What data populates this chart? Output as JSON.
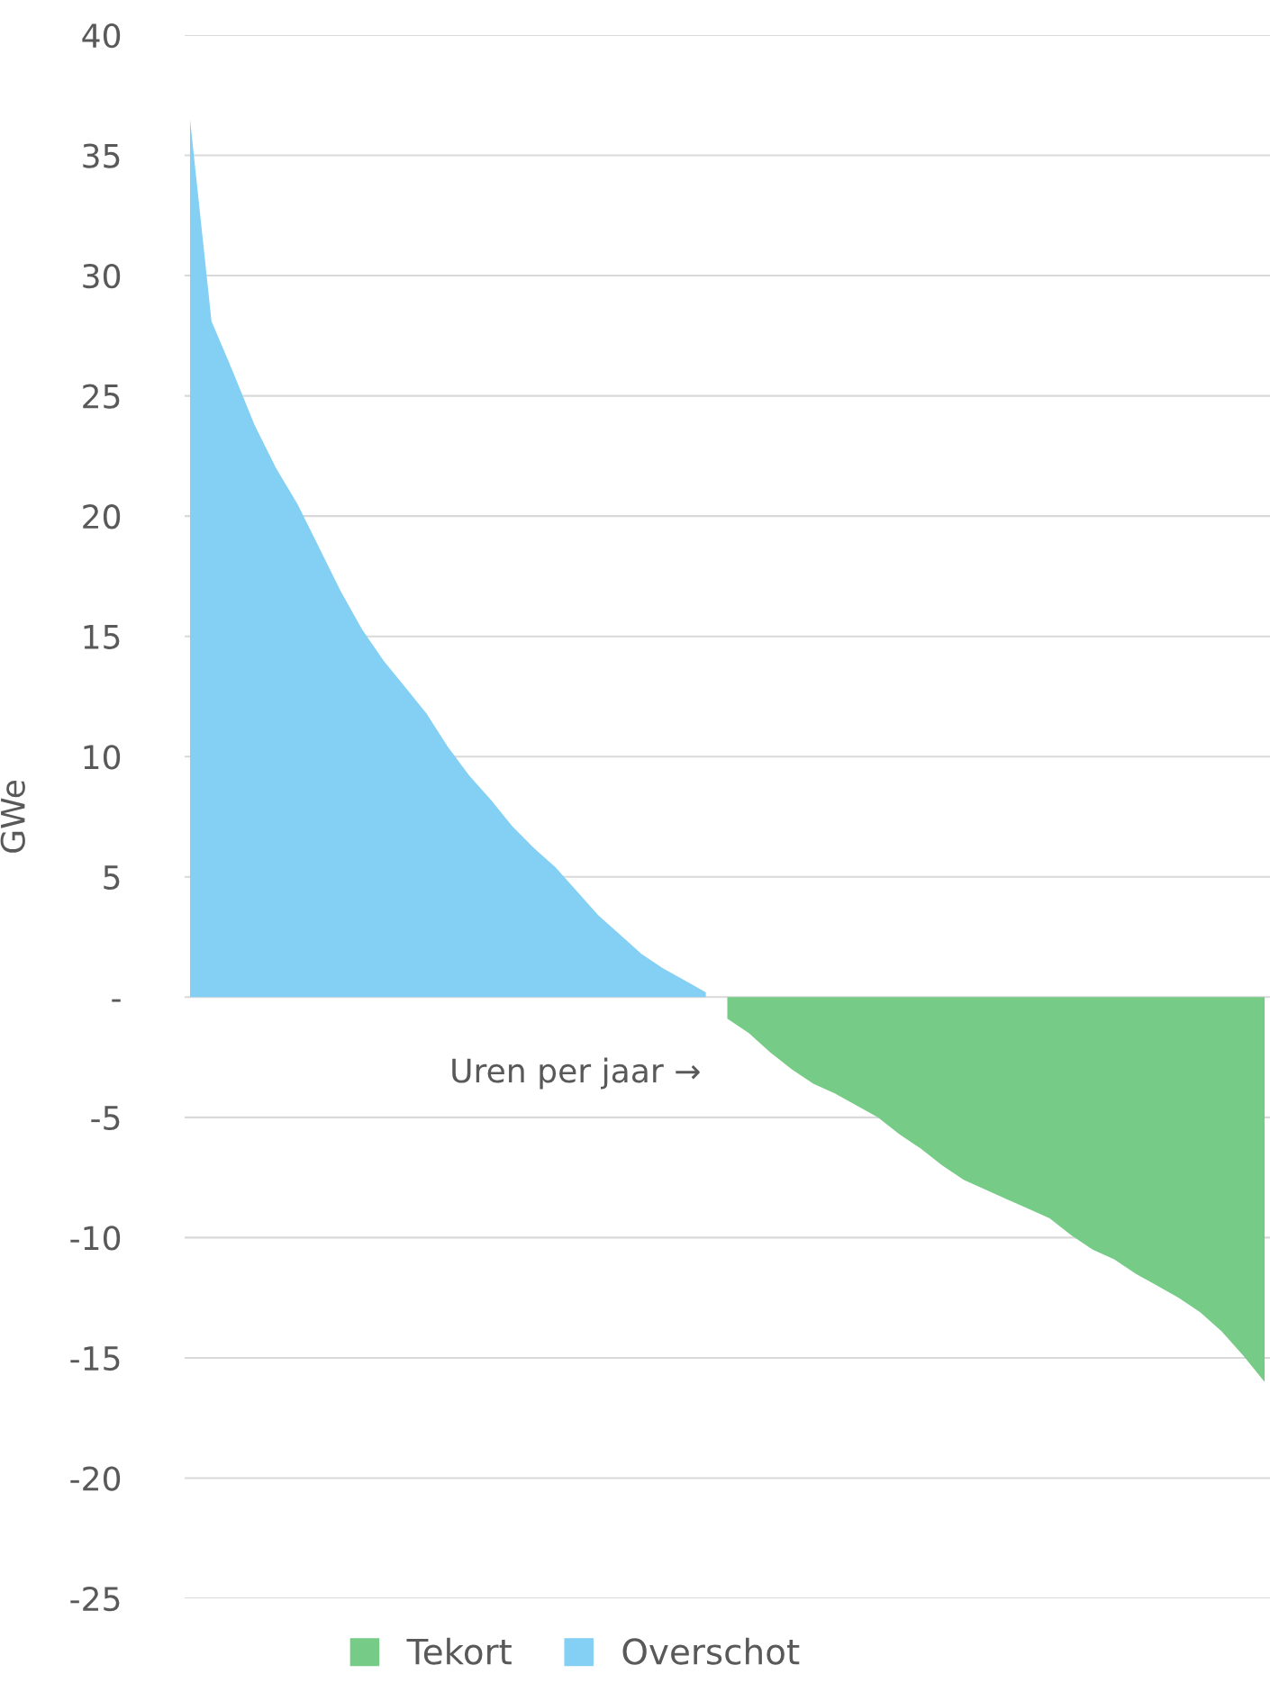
{
  "chart_data": {
    "type": "area",
    "xlabel": "Uren per jaar →",
    "ylabel": "GWe",
    "categories": [
      null,
      null,
      null,
      null,
      null,
      null,
      null,
      null,
      null,
      null,
      null,
      null,
      null,
      null,
      null,
      null,
      null,
      null,
      null,
      null,
      null,
      null,
      null,
      null,
      null,
      null,
      null,
      null,
      null,
      null,
      null,
      null,
      null,
      null,
      null,
      null,
      null,
      null,
      null,
      null,
      null,
      null,
      null,
      null,
      null,
      null,
      null,
      null,
      null,
      null,
      null
    ],
    "series": [
      {
        "name": "Tekort",
        "color": "#76cc86",
        "values": [
          null,
          null,
          null,
          null,
          null,
          null,
          null,
          null,
          null,
          null,
          null,
          null,
          null,
          null,
          null,
          null,
          null,
          null,
          null,
          null,
          null,
          null,
          null,
          null,
          null,
          -0.9,
          -1.5,
          -2.3,
          -3.0,
          -3.6,
          -4.0,
          -4.5,
          -5.0,
          -5.7,
          -6.3,
          -7.0,
          -7.6,
          -8.0,
          -8.4,
          -8.8,
          -9.2,
          -9.9,
          -10.5,
          -10.9,
          -11.5,
          -12.0,
          -12.5,
          -13.1,
          -13.9,
          -14.9,
          -16.0
        ]
      },
      {
        "name": "Overschot",
        "color": "#84d0f4",
        "values": [
          36.5,
          28.1,
          26.0,
          23.8,
          22.0,
          20.5,
          18.7,
          16.9,
          15.3,
          14.0,
          12.9,
          11.8,
          10.4,
          9.2,
          8.2,
          7.1,
          6.2,
          5.4,
          4.4,
          3.4,
          2.6,
          1.8,
          1.2,
          0.7,
          0.2,
          null,
          null,
          null,
          null,
          null,
          null,
          null,
          null,
          null,
          null,
          null,
          null,
          null,
          null,
          null,
          null,
          null,
          null,
          null,
          null,
          null,
          null,
          null,
          null,
          null,
          null
        ]
      }
    ],
    "ylim": [
      -25,
      40
    ],
    "yticks": [
      40,
      35,
      30,
      25,
      20,
      15,
      10,
      5,
      {
        "value": 0,
        "label": "-"
      },
      -5,
      -10,
      -15,
      -20,
      -25
    ],
    "tick_labels": "y",
    "grid": "y",
    "legend": "bottom"
  }
}
